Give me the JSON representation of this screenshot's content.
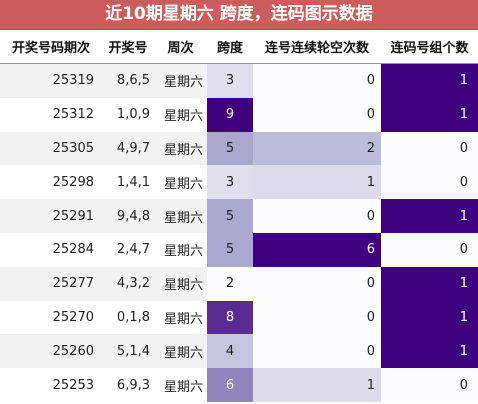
{
  "title": "近10期星期六 跨度，连码图示数据",
  "headers": {
    "issue": "开奖号码期次",
    "numbers": "开奖号",
    "weekday": "周次",
    "span": "跨度",
    "consecutive_miss": "连号连续轮空次数",
    "consecutive_groups": "连码号组个数"
  },
  "rows": [
    {
      "issue": "25319",
      "numbers": "8,6,5",
      "weekday": "星期六",
      "span": 3,
      "consecutive_miss": 0,
      "consecutive_groups": 1
    },
    {
      "issue": "25312",
      "numbers": "1,0,9",
      "weekday": "星期六",
      "span": 9,
      "consecutive_miss": 0,
      "consecutive_groups": 1
    },
    {
      "issue": "25305",
      "numbers": "4,9,7",
      "weekday": "星期六",
      "span": 5,
      "consecutive_miss": 2,
      "consecutive_groups": 0
    },
    {
      "issue": "25298",
      "numbers": "1,4,1",
      "weekday": "星期六",
      "span": 3,
      "consecutive_miss": 1,
      "consecutive_groups": 0
    },
    {
      "issue": "25291",
      "numbers": "9,4,8",
      "weekday": "星期六",
      "span": 5,
      "consecutive_miss": 0,
      "consecutive_groups": 1
    },
    {
      "issue": "25284",
      "numbers": "2,4,7",
      "weekday": "星期六",
      "span": 5,
      "consecutive_miss": 6,
      "consecutive_groups": 0
    },
    {
      "issue": "25277",
      "numbers": "4,3,2",
      "weekday": "星期六",
      "span": 2,
      "consecutive_miss": 0,
      "consecutive_groups": 1
    },
    {
      "issue": "25270",
      "numbers": "0,1,8",
      "weekday": "星期六",
      "span": 8,
      "consecutive_miss": 0,
      "consecutive_groups": 1
    },
    {
      "issue": "25260",
      "numbers": "5,1,4",
      "weekday": "星期六",
      "span": 4,
      "consecutive_miss": 0,
      "consecutive_groups": 1
    },
    {
      "issue": "25253",
      "numbers": "6,9,3",
      "weekday": "星期六",
      "span": 6,
      "consecutive_miss": 1,
      "consecutive_groups": 0
    }
  ],
  "colors": {
    "title_bg": "#cd5c5c",
    "heat_low": "#fcfbfd",
    "heat_high": "#3f007d",
    "stripe": "#f2f2f2"
  }
}
